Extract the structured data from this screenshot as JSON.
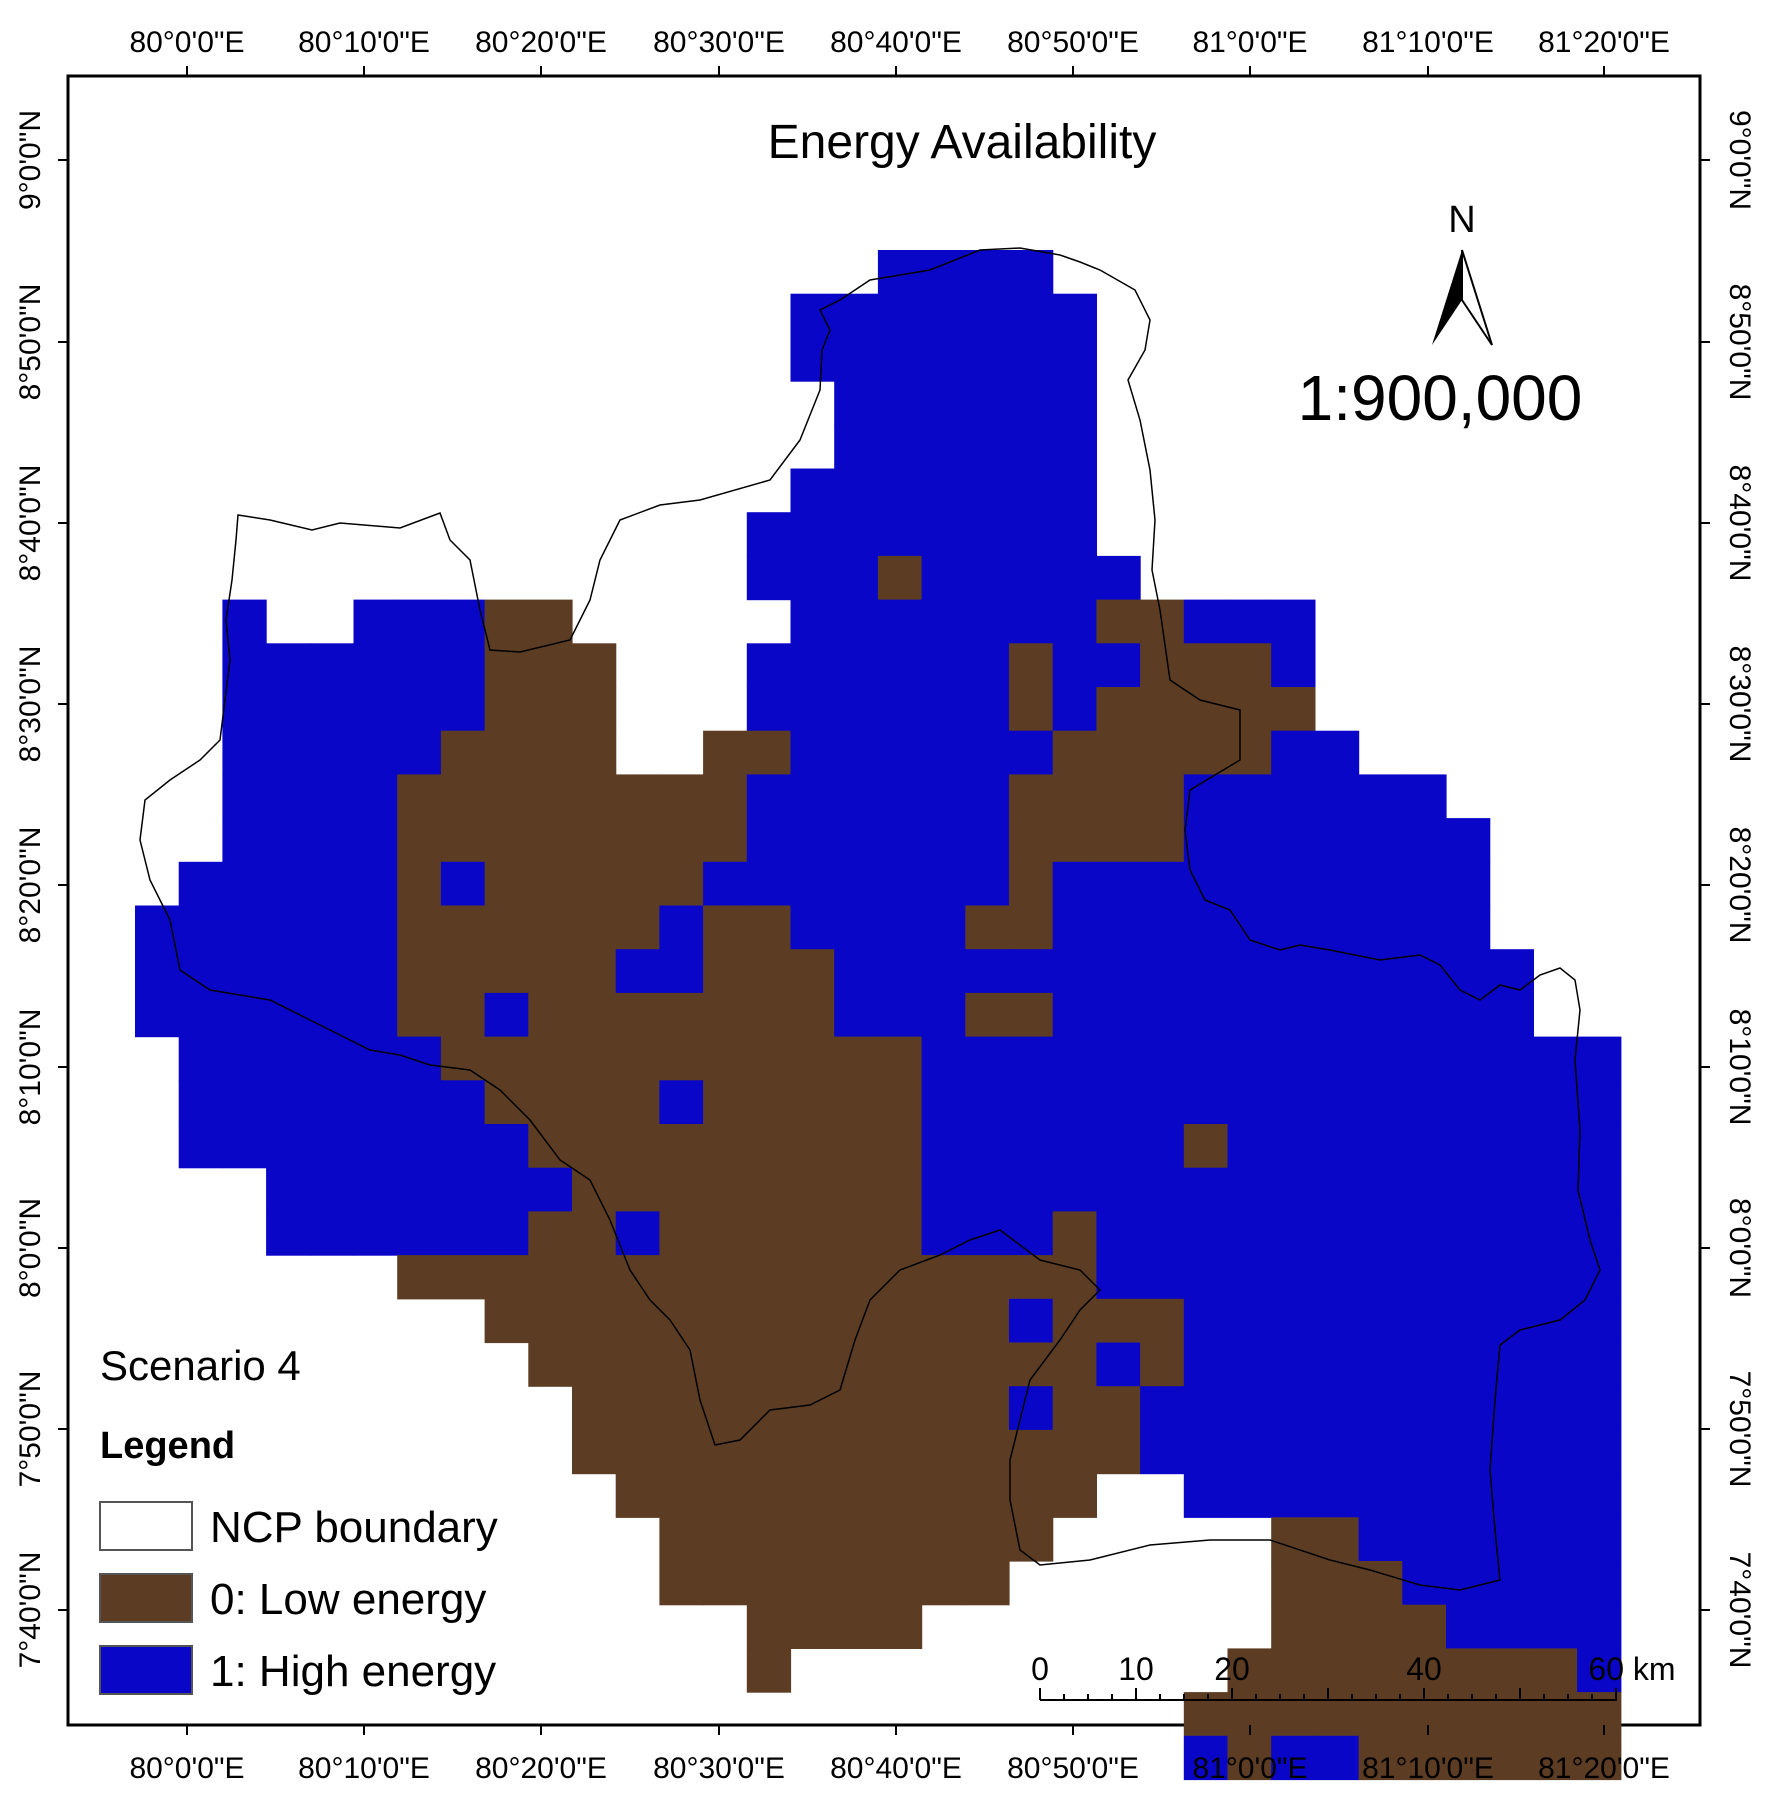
{
  "map": {
    "title": "Energy Availability",
    "scale_text": "1:900,000",
    "north_label": "N",
    "scenario": "Scenario 4",
    "longitude_labels": [
      "80°0'0\"E",
      "80°10'0\"E",
      "80°20'0\"E",
      "80°30'0\"E",
      "80°40'0\"E",
      "80°50'0\"E",
      "81°0'0\"E",
      "81°10'0\"E",
      "81°20'0\"E"
    ],
    "latitude_labels": [
      "9°0'0\"N",
      "8°50'0\"N",
      "8°40'0\"N",
      "8°30'0\"N",
      "8°20'0\"N",
      "8°10'0\"N",
      "8°0'0\"N",
      "7°50'0\"N",
      "7°40'0\"N"
    ],
    "scalebar": {
      "ticks": [
        "0",
        "10",
        "20",
        "40",
        "60 km"
      ]
    },
    "legend": {
      "heading": "Legend",
      "items": [
        {
          "label": "NCP boundary",
          "color": "#ffffff"
        },
        {
          "label": "0: Low energy",
          "color": "#5c3d23"
        },
        {
          "label": "1: High energy",
          "color": "#0a06c8"
        }
      ]
    },
    "colors": {
      "low": "#5c3d23",
      "high": "#0a06c8",
      "boundary": "#000000"
    }
  }
}
